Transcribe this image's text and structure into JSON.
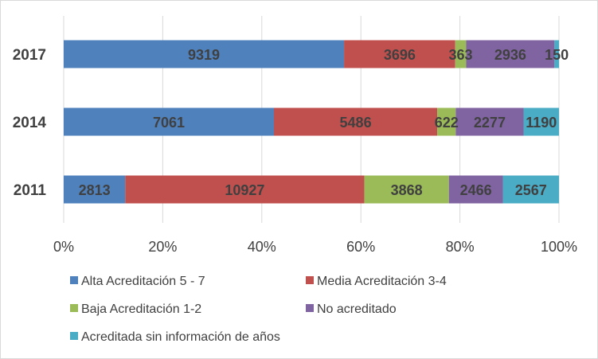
{
  "chart_data": {
    "type": "bar",
    "orientation": "horizontal",
    "stacking": "percent",
    "categories": [
      "2017",
      "2014",
      "2011"
    ],
    "series": [
      {
        "name": "Alta Acreditación 5 - 7",
        "color": "#4f81bd",
        "values": [
          9319,
          7061,
          2813
        ]
      },
      {
        "name": "Media Acreditación 3-4",
        "color": "#c0504d",
        "values": [
          3696,
          5486,
          10927
        ]
      },
      {
        "name": "Baja Acreditación 1-2",
        "color": "#9bbb59",
        "values": [
          363,
          622,
          3868
        ]
      },
      {
        "name": "No acreditado",
        "color": "#8064a2",
        "values": [
          2936,
          2277,
          2466
        ]
      },
      {
        "name": "Acreditada sin información de años",
        "color": "#4bacc6",
        "values": [
          150,
          1190,
          2567
        ]
      }
    ],
    "x_ticks": [
      "0%",
      "20%",
      "40%",
      "60%",
      "80%",
      "100%"
    ],
    "xlim": [
      0,
      100
    ],
    "grid": true,
    "legend_position": "bottom",
    "title": "",
    "xlabel": "",
    "ylabel": ""
  }
}
